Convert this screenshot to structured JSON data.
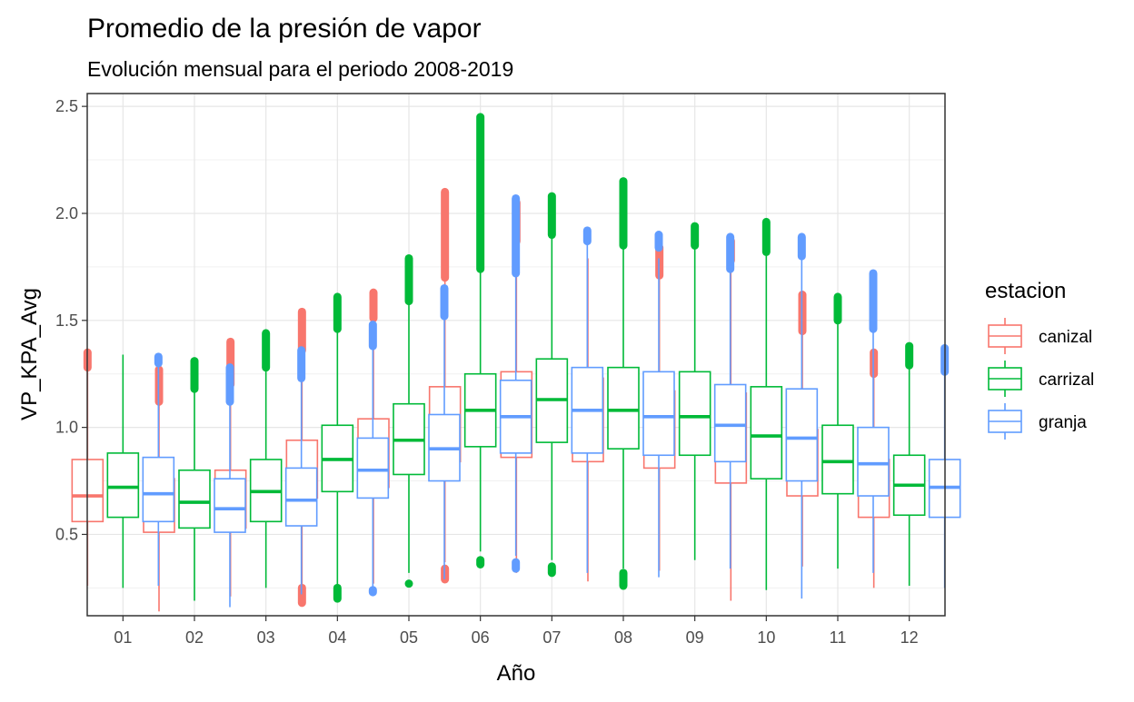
{
  "chart_data": {
    "type": "boxplot",
    "title": "Promedio de la presión de vapor",
    "subtitle": "Evolución mensual para el periodo 2008-2019",
    "xlabel": "Año",
    "ylabel": "VP_KPA_Avg",
    "ylim": [
      0.12,
      2.56
    ],
    "y_ticks": [
      "0.5",
      "1.0",
      "1.5",
      "2.0",
      "2.5"
    ],
    "categories": [
      "01",
      "02",
      "03",
      "04",
      "05",
      "06",
      "07",
      "08",
      "09",
      "10",
      "11",
      "12"
    ],
    "grid": true,
    "legend": {
      "title": "estacion",
      "position": "right"
    },
    "series": [
      {
        "name": "canizal",
        "color": "#F8766D",
        "boxes": [
          {
            "min": 0.26,
            "q1": 0.56,
            "median": 0.68,
            "q3": 0.85,
            "max": 1.28,
            "out_low": null,
            "out_high": [
              1.28,
              1.35
            ]
          },
          {
            "min": 0.14,
            "q1": 0.51,
            "median": 0.62,
            "q3": 0.76,
            "max": 1.12,
            "out_low": null,
            "out_high": [
              1.12,
              1.27
            ]
          },
          {
            "min": 0.21,
            "q1": 0.53,
            "median": 0.66,
            "q3": 0.8,
            "max": 1.2,
            "out_low": null,
            "out_high": [
              1.2,
              1.4
            ]
          },
          {
            "min": 0.26,
            "q1": 0.67,
            "median": 0.8,
            "q3": 0.94,
            "max": 1.36,
            "out_low": [
              0.18,
              0.25
            ],
            "out_high": [
              1.36,
              1.54
            ]
          },
          {
            "min": 0.27,
            "q1": 0.72,
            "median": 0.87,
            "q3": 1.04,
            "max": 1.51,
            "out_low": null,
            "out_high": [
              1.51,
              1.63
            ]
          },
          {
            "min": 0.37,
            "q1": 0.84,
            "median": 1.01,
            "q3": 1.19,
            "max": 1.7,
            "out_low": [
              0.29,
              0.34
            ],
            "out_high": [
              1.7,
              2.1
            ]
          },
          {
            "min": 0.32,
            "q1": 0.86,
            "median": 1.06,
            "q3": 1.26,
            "max": 1.87,
            "out_low": null,
            "out_high": [
              1.87,
              2.05
            ]
          },
          {
            "min": 0.28,
            "q1": 0.84,
            "median": 1.03,
            "q3": 1.23,
            "max": 1.79,
            "out_low": null,
            "out_high": null
          },
          {
            "min": 0.33,
            "q1": 0.81,
            "median": 0.98,
            "q3": 1.17,
            "max": 1.71,
            "out_low": null,
            "out_high": [
              1.71,
              1.84
            ]
          },
          {
            "min": 0.19,
            "q1": 0.74,
            "median": 0.94,
            "q3": 1.16,
            "max": 1.78,
            "out_low": null,
            "out_high": [
              1.78,
              1.87
            ]
          },
          {
            "min": 0.35,
            "q1": 0.68,
            "median": 0.82,
            "q3": 0.99,
            "max": 1.45,
            "out_low": null,
            "out_high": [
              1.45,
              1.62
            ]
          },
          {
            "min": 0.25,
            "q1": 0.58,
            "median": 0.71,
            "q3": 0.85,
            "max": 1.25,
            "out_low": null,
            "out_high": [
              1.25,
              1.35
            ]
          }
        ]
      },
      {
        "name": "carrizal",
        "color": "#00BA38",
        "boxes": [
          {
            "min": 0.25,
            "q1": 0.58,
            "median": 0.72,
            "q3": 0.88,
            "max": 1.34,
            "out_low": null,
            "out_high": null
          },
          {
            "min": 0.19,
            "q1": 0.53,
            "median": 0.65,
            "q3": 0.8,
            "max": 1.18,
            "out_low": null,
            "out_high": [
              1.18,
              1.31
            ]
          },
          {
            "min": 0.25,
            "q1": 0.56,
            "median": 0.7,
            "q3": 0.85,
            "max": 1.28,
            "out_low": null,
            "out_high": [
              1.28,
              1.44
            ]
          },
          {
            "min": 0.26,
            "q1": 0.7,
            "median": 0.85,
            "q3": 1.01,
            "max": 1.46,
            "out_low": [
              0.2,
              0.25
            ],
            "out_high": [
              1.46,
              1.61
            ]
          },
          {
            "min": 0.32,
            "q1": 0.78,
            "median": 0.94,
            "q3": 1.11,
            "max": 1.59,
            "out_low": [
              0.27,
              0.27
            ],
            "out_high": [
              1.59,
              1.79
            ]
          },
          {
            "min": 0.42,
            "q1": 0.91,
            "median": 1.08,
            "q3": 1.25,
            "max": 1.74,
            "out_low": [
              0.36,
              0.38
            ],
            "out_high": [
              1.74,
              2.45
            ]
          },
          {
            "min": 0.38,
            "q1": 0.93,
            "median": 1.13,
            "q3": 1.32,
            "max": 1.9,
            "out_low": [
              0.32,
              0.35
            ],
            "out_high": [
              1.9,
              2.08
            ]
          },
          {
            "min": 0.34,
            "q1": 0.9,
            "median": 1.08,
            "q3": 1.28,
            "max": 1.85,
            "out_low": [
              0.26,
              0.32
            ],
            "out_high": [
              1.85,
              2.15
            ]
          },
          {
            "min": 0.38,
            "q1": 0.87,
            "median": 1.05,
            "q3": 1.26,
            "max": 1.85,
            "out_low": null,
            "out_high": [
              1.85,
              1.94
            ]
          },
          {
            "min": 0.24,
            "q1": 0.76,
            "median": 0.96,
            "q3": 1.19,
            "max": 1.82,
            "out_low": null,
            "out_high": [
              1.82,
              1.96
            ]
          },
          {
            "min": 0.34,
            "q1": 0.69,
            "median": 0.84,
            "q3": 1.01,
            "max": 1.5,
            "out_low": null,
            "out_high": [
              1.5,
              1.61
            ]
          },
          {
            "min": 0.26,
            "q1": 0.59,
            "median": 0.73,
            "q3": 0.87,
            "max": 1.29,
            "out_low": null,
            "out_high": [
              1.29,
              1.38
            ]
          }
        ]
      },
      {
        "name": "granja",
        "color": "#619CFF",
        "boxes": [
          {
            "min": 0.26,
            "q1": 0.56,
            "median": 0.69,
            "q3": 0.86,
            "max": 1.3,
            "out_low": null,
            "out_high": [
              1.3,
              1.33
            ]
          },
          {
            "min": 0.16,
            "q1": 0.51,
            "median": 0.62,
            "q3": 0.76,
            "max": 1.12,
            "out_low": null,
            "out_high": [
              1.12,
              1.28
            ]
          },
          {
            "min": 0.22,
            "q1": 0.54,
            "median": 0.66,
            "q3": 0.81,
            "max": 1.23,
            "out_low": null,
            "out_high": [
              1.23,
              1.36
            ]
          },
          {
            "min": 0.25,
            "q1": 0.67,
            "median": 0.8,
            "q3": 0.95,
            "max": 1.38,
            "out_low": [
              0.23,
              0.24
            ],
            "out_high": [
              1.38,
              1.48
            ]
          },
          {
            "min": 0.29,
            "q1": 0.75,
            "median": 0.9,
            "q3": 1.06,
            "max": 1.52,
            "out_low": null,
            "out_high": [
              1.52,
              1.65
            ]
          },
          {
            "min": 0.4,
            "q1": 0.88,
            "median": 1.05,
            "q3": 1.22,
            "max": 1.72,
            "out_low": [
              0.34,
              0.37
            ],
            "out_high": [
              1.72,
              2.07
            ]
          },
          {
            "min": 0.32,
            "q1": 0.88,
            "median": 1.08,
            "q3": 1.28,
            "max": 1.87,
            "out_low": null,
            "out_high": [
              1.87,
              1.92
            ]
          },
          {
            "min": 0.3,
            "q1": 0.87,
            "median": 1.05,
            "q3": 1.26,
            "max": 1.79,
            "out_low": null,
            "out_high": [
              1.84,
              1.9
            ]
          },
          {
            "min": 0.34,
            "q1": 0.84,
            "median": 1.01,
            "q3": 1.2,
            "max": 1.74,
            "out_low": null,
            "out_high": [
              1.74,
              1.89
            ]
          },
          {
            "min": 0.2,
            "q1": 0.75,
            "median": 0.95,
            "q3": 1.18,
            "max": 1.8,
            "out_low": null,
            "out_high": [
              1.8,
              1.89
            ]
          },
          {
            "min": 0.32,
            "q1": 0.68,
            "median": 0.83,
            "q3": 1.0,
            "max": 1.46,
            "out_low": null,
            "out_high": [
              1.46,
              1.72
            ]
          },
          {
            "min": 0.25,
            "q1": 0.58,
            "median": 0.72,
            "q3": 0.85,
            "max": 1.26,
            "out_low": null,
            "out_high": [
              1.26,
              1.37
            ]
          }
        ]
      }
    ]
  }
}
